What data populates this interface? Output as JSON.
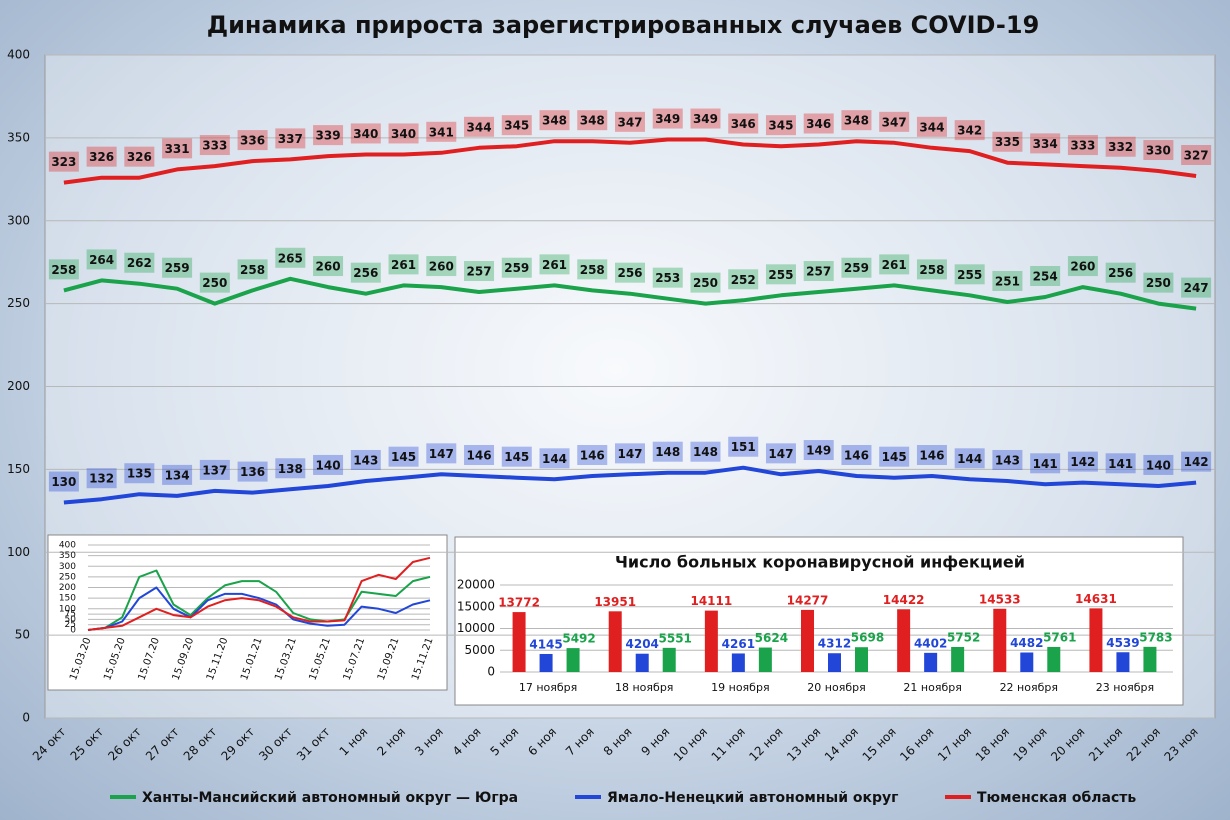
{
  "chart_data": [
    {
      "type": "line",
      "title": "Динамика прироста зарегистрированных случаев COVID-19",
      "categories": [
        "24 окт",
        "25 окт",
        "26 окт",
        "27 окт",
        "28 окт",
        "29 окт",
        "30 окт",
        "31 окт",
        "1 ноя",
        "2 ноя",
        "3 ноя",
        "4 ноя",
        "5 ноя",
        "6 ноя",
        "7 ноя",
        "8 ноя",
        "9 ноя",
        "10 ноя",
        "11 ноя",
        "12 ноя",
        "13 ноя",
        "14 ноя",
        "15 ноя",
        "16 ноя",
        "17 ноя",
        "18 ноя",
        "19 ноя",
        "20 ноя",
        "21 ноя",
        "22 ноя",
        "23 ноя"
      ],
      "series": [
        {
          "name": "Ханты-Мансийский автономный округ — Югра",
          "color": "#1aa34a",
          "values": [
            258,
            264,
            262,
            259,
            250,
            258,
            265,
            260,
            256,
            261,
            260,
            257,
            259,
            261,
            258,
            256,
            253,
            250,
            252,
            255,
            257,
            259,
            261,
            258,
            255,
            251,
            254,
            260,
            256,
            250,
            247
          ]
        },
        {
          "name": "Ямало-Ненецкий автономный округ",
          "color": "#2146d8",
          "values": [
            130,
            132,
            135,
            134,
            137,
            136,
            138,
            140,
            143,
            145,
            147,
            146,
            145,
            144,
            146,
            147,
            148,
            148,
            151,
            147,
            149,
            146,
            145,
            146,
            144,
            143,
            141,
            142,
            141,
            140,
            142
          ]
        },
        {
          "name": "Тюменская область",
          "color": "#e02020",
          "values": [
            323,
            326,
            326,
            331,
            333,
            336,
            337,
            339,
            340,
            340,
            341,
            344,
            345,
            348,
            348,
            347,
            349,
            349,
            346,
            345,
            346,
            348,
            347,
            344,
            342,
            335,
            334,
            333,
            332,
            330,
            327
          ]
        }
      ],
      "ylim": [
        0,
        400
      ],
      "yticks": [
        0,
        50,
        100,
        150,
        200,
        250,
        300,
        350,
        400
      ],
      "grid": true,
      "legend": "bottom"
    },
    {
      "type": "line",
      "categories": [
        "15.03.20",
        null,
        "15.05.20",
        null,
        "15.07.20",
        null,
        "15.09.20",
        null,
        "15.11.20",
        null,
        "15.01.21",
        null,
        "15.03.21",
        null,
        "15.05.21",
        null,
        "15.07.21",
        null,
        "15.09.21",
        null,
        "15.11.21"
      ],
      "series": [
        {
          "color": "#1aa34a",
          "values": [
            0,
            10,
            60,
            250,
            280,
            120,
            70,
            150,
            210,
            230,
            230,
            180,
            80,
            50,
            40,
            50,
            180,
            170,
            160,
            230,
            250
          ]
        },
        {
          "color": "#2146d8",
          "values": [
            0,
            10,
            40,
            150,
            200,
            100,
            60,
            140,
            170,
            170,
            150,
            120,
            50,
            30,
            20,
            25,
            110,
            100,
            80,
            120,
            140
          ]
        },
        {
          "color": "#e02020",
          "values": [
            0,
            10,
            20,
            60,
            100,
            70,
            60,
            110,
            140,
            150,
            140,
            110,
            60,
            40,
            40,
            45,
            230,
            260,
            240,
            320,
            340
          ]
        }
      ],
      "ylim": [
        0,
        400
      ],
      "yticks": [
        0,
        25,
        50,
        75,
        100,
        150,
        200,
        250,
        300,
        350,
        400
      ],
      "grid": true
    },
    {
      "type": "bar",
      "title": "Число больных коронавирусной инфекцией",
      "categories": [
        "17 ноября",
        "18 ноября",
        "19 ноября",
        "20 ноября",
        "21 ноября",
        "22 ноября",
        "23 ноября"
      ],
      "series": [
        {
          "color": "#e02020",
          "values": [
            13772,
            13951,
            14111,
            14277,
            14422,
            14533,
            14631
          ]
        },
        {
          "color": "#2146d8",
          "values": [
            4145,
            4204,
            4261,
            4312,
            4402,
            4482,
            4539
          ]
        },
        {
          "color": "#1aa34a",
          "values": [
            5492,
            5551,
            5624,
            5698,
            5752,
            5761,
            5783
          ]
        }
      ],
      "ylim": [
        0,
        20000
      ],
      "yticks": [
        0,
        5000,
        10000,
        15000,
        20000
      ],
      "grid": true
    }
  ]
}
